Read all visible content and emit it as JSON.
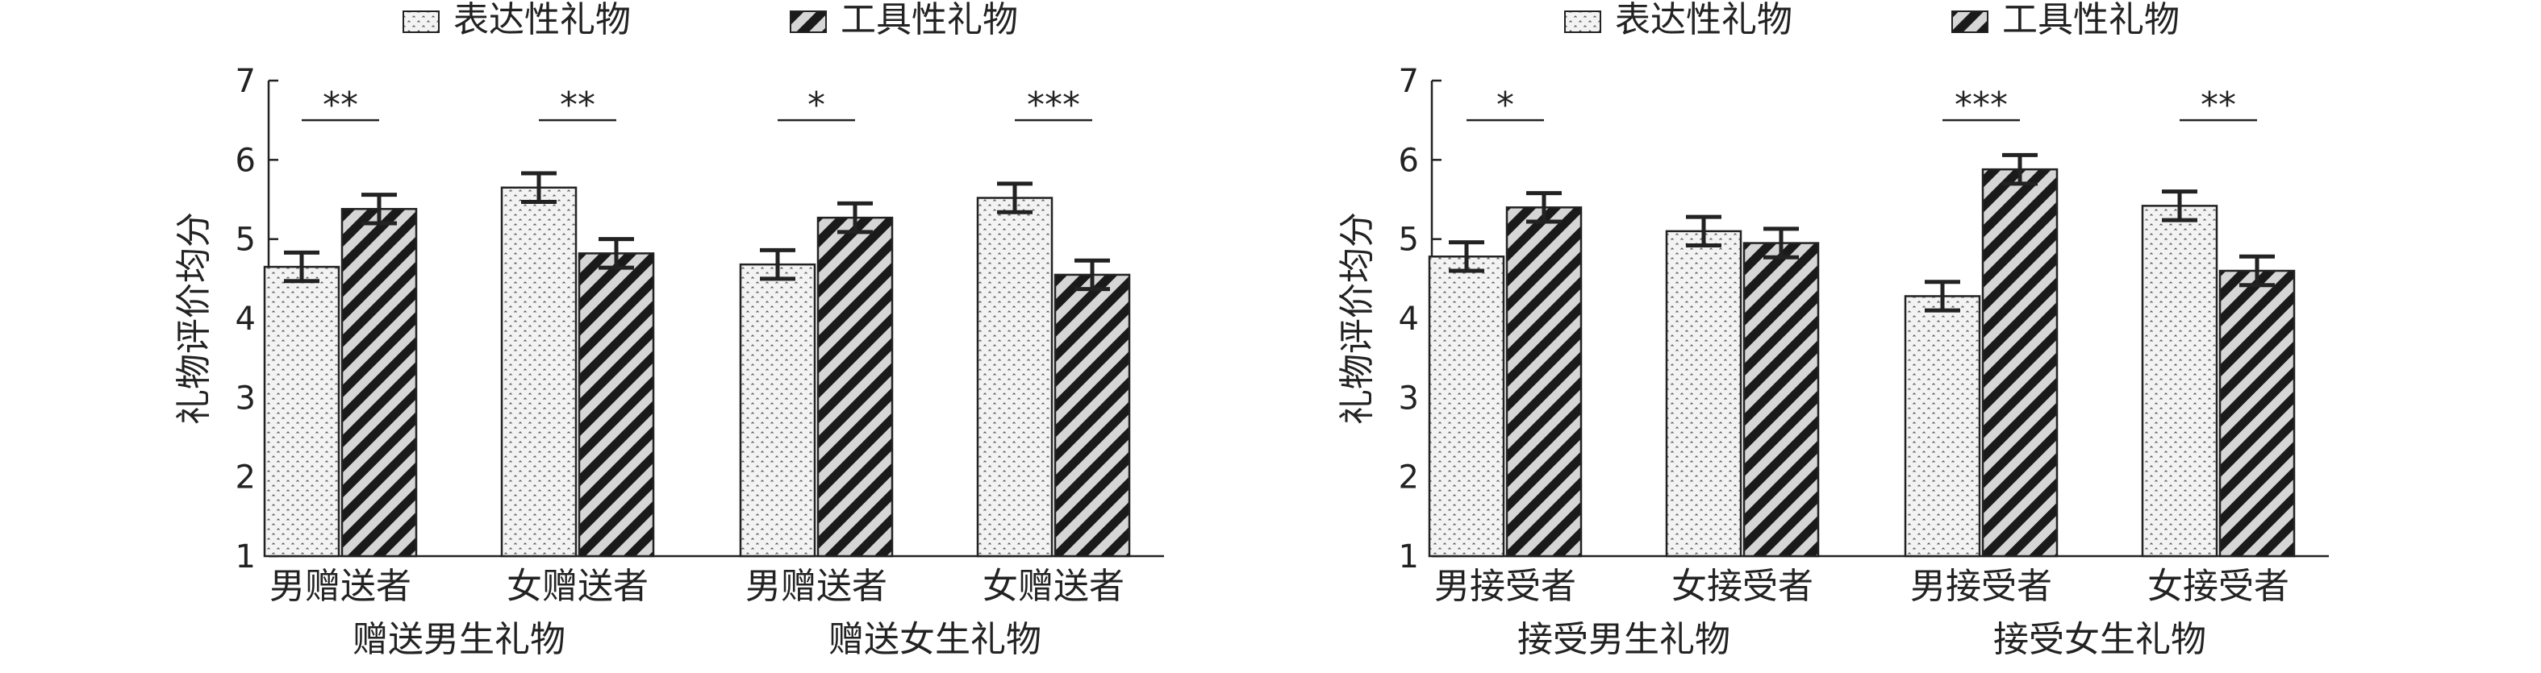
{
  "chart_data": [
    {
      "type": "bar",
      "ylabel": "礼物评价均分",
      "ylim": [
        1,
        7
      ],
      "yticks": [
        1,
        2,
        3,
        4,
        5,
        6,
        7
      ],
      "legend_position": "top",
      "grid": false,
      "categories": [
        "男赠送者",
        "女赠送者",
        "男赠送者",
        "女赠送者"
      ],
      "groups": [
        {
          "label": "赠送男生礼物",
          "span": [
            0,
            1
          ]
        },
        {
          "label": "赠送女生礼物",
          "span": [
            2,
            3
          ]
        }
      ],
      "series": [
        {
          "name": "表达性礼物",
          "values": [
            4.65,
            5.65,
            4.68,
            5.52
          ],
          "errors": [
            0.18,
            0.18,
            0.18,
            0.18
          ]
        },
        {
          "name": "工具性礼物",
          "values": [
            5.38,
            4.82,
            5.27,
            4.55
          ],
          "errors": [
            0.18,
            0.18,
            0.18,
            0.18
          ]
        }
      ],
      "significance": [
        "**",
        "**",
        "*",
        "***"
      ]
    },
    {
      "type": "bar",
      "ylabel": "礼物评价均分",
      "ylim": [
        1,
        7
      ],
      "yticks": [
        1,
        2,
        3,
        4,
        5,
        6,
        7
      ],
      "legend_position": "top",
      "grid": false,
      "categories": [
        "男接受者",
        "女接受者",
        "男接受者",
        "女接受者"
      ],
      "groups": [
        {
          "label": "接受男生礼物",
          "span": [
            0,
            1
          ]
        },
        {
          "label": "接受女生礼物",
          "span": [
            2,
            3
          ]
        }
      ],
      "series": [
        {
          "name": "表达性礼物",
          "values": [
            4.78,
            5.1,
            4.28,
            5.42
          ],
          "errors": [
            0.18,
            0.18,
            0.18,
            0.18
          ]
        },
        {
          "name": "工具性礼物",
          "values": [
            5.4,
            4.95,
            5.88,
            4.6
          ],
          "errors": [
            0.18,
            0.18,
            0.18,
            0.18
          ]
        }
      ],
      "significance": [
        "*",
        "",
        "***",
        "**"
      ]
    }
  ],
  "colors": {
    "expressive_fill": "#f2f2f2",
    "expressive_dots": "#555555",
    "instrumental_stripe": "#1a1a1a",
    "instrumental_bg": "#d8d8d8",
    "axis": "#222222"
  }
}
